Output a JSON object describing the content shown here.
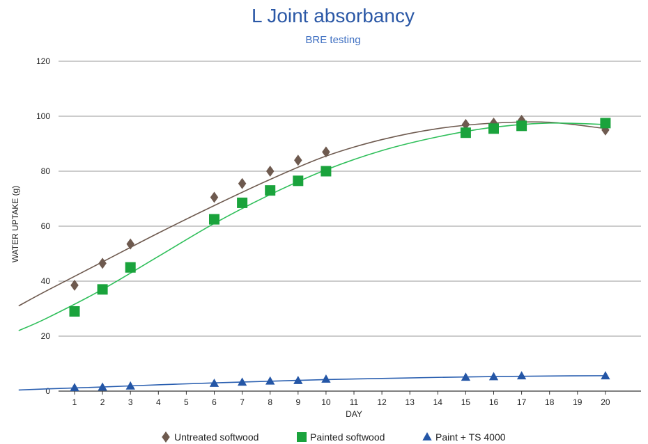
{
  "chart_data": {
    "type": "scatter",
    "title": "L Joint absorbancy",
    "subtitle": "BRE testing",
    "xlabel": "DAY",
    "ylabel": "WATER UPTAKE (g)",
    "xlim": [
      0,
      20.3
    ],
    "ylim": [
      0,
      120
    ],
    "yticks": [
      0,
      20,
      40,
      60,
      80,
      100,
      120
    ],
    "xticks": [
      1,
      2,
      3,
      4,
      5,
      6,
      7,
      8,
      9,
      10,
      11,
      12,
      13,
      14,
      15,
      16,
      17,
      18,
      19,
      20
    ],
    "grid": "horizontal",
    "legend_position": "bottom",
    "series": [
      {
        "name": "Untreated softwood",
        "marker": "diamond",
        "color": "#6e5a4f",
        "line_color": "#6e5a4f",
        "x": [
          1,
          2,
          3,
          6,
          7,
          8,
          9,
          10,
          15,
          16,
          17,
          20
        ],
        "y": [
          38.5,
          46.5,
          53.5,
          70.5,
          75.5,
          80,
          84,
          87,
          97,
          97.5,
          98.5,
          95
        ],
        "trend": [
          [
            -1,
            31
          ],
          [
            0,
            36.5
          ],
          [
            2,
            47
          ],
          [
            4,
            57.5
          ],
          [
            6,
            67.5
          ],
          [
            8,
            77
          ],
          [
            10,
            85.5
          ],
          [
            12,
            91.5
          ],
          [
            14,
            95.5
          ],
          [
            16,
            97.5
          ],
          [
            18,
            97.8
          ],
          [
            20,
            95.5
          ]
        ]
      },
      {
        "name": "Painted softwood",
        "marker": "square",
        "color": "#1aa33c",
        "line_color": "#2fbf5a",
        "x": [
          1,
          2,
          3,
          6,
          7,
          8,
          9,
          10,
          15,
          16,
          17,
          20
        ],
        "y": [
          29,
          37,
          45,
          62.5,
          68.5,
          73,
          76.5,
          80,
          94,
          95.5,
          96.5,
          97.5
        ],
        "trend": [
          [
            -1,
            22
          ],
          [
            0,
            26.5
          ],
          [
            2,
            37
          ],
          [
            4,
            49
          ],
          [
            6,
            61
          ],
          [
            8,
            71.5
          ],
          [
            10,
            80.5
          ],
          [
            12,
            87.5
          ],
          [
            14,
            92.5
          ],
          [
            16,
            96
          ],
          [
            18,
            97.5
          ],
          [
            20,
            97
          ]
        ]
      },
      {
        "name": "Paint + TS 4000",
        "marker": "triangle",
        "color": "#2456a6",
        "line_color": "#2a5fb0",
        "x": [
          1,
          2,
          3,
          6,
          7,
          8,
          9,
          10,
          15,
          16,
          17,
          20
        ],
        "y": [
          1.2,
          1.4,
          1.8,
          2.8,
          3.2,
          3.6,
          3.8,
          4.3,
          5,
          5.2,
          5.5,
          5.5
        ],
        "trend": [
          [
            -1,
            0.4
          ],
          [
            0,
            0.8
          ],
          [
            2,
            1.5
          ],
          [
            4,
            2.3
          ],
          [
            6,
            3
          ],
          [
            8,
            3.6
          ],
          [
            10,
            4.2
          ],
          [
            12,
            4.6
          ],
          [
            14,
            5
          ],
          [
            16,
            5.3
          ],
          [
            18,
            5.5
          ],
          [
            20,
            5.6
          ]
        ]
      }
    ]
  }
}
